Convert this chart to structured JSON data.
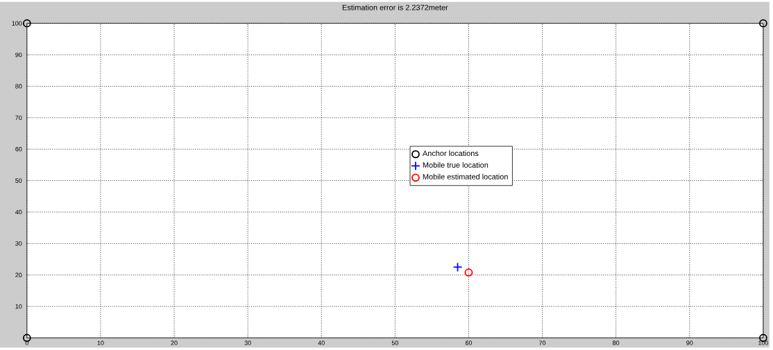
{
  "chart_data": {
    "type": "scatter",
    "title": "Estimation error is 2.2372meter",
    "xlim": [
      0,
      100
    ],
    "ylim": [
      0,
      100
    ],
    "xticks": [
      0,
      10,
      20,
      30,
      40,
      50,
      60,
      70,
      80,
      90,
      100
    ],
    "yticks": [
      {
        "value": 0,
        "label": null
      },
      10,
      20,
      30,
      40,
      50,
      60,
      70,
      80,
      90,
      100
    ],
    "grid": true,
    "legend": "center",
    "series": [
      {
        "name": "Anchor locations",
        "color": "#000000",
        "marker": "circle",
        "x": [
          0,
          0,
          100,
          100
        ],
        "values": [
          0,
          100,
          0,
          100
        ]
      },
      {
        "name": "Mobile true location",
        "color": "#0000ff",
        "marker": "cross",
        "x": [
          58.5
        ],
        "values": [
          22.5
        ]
      },
      {
        "name": "Mobile estimated location",
        "color": "#ff0000",
        "marker": "circle",
        "x": [
          60
        ],
        "values": [
          20.8
        ]
      }
    ]
  }
}
